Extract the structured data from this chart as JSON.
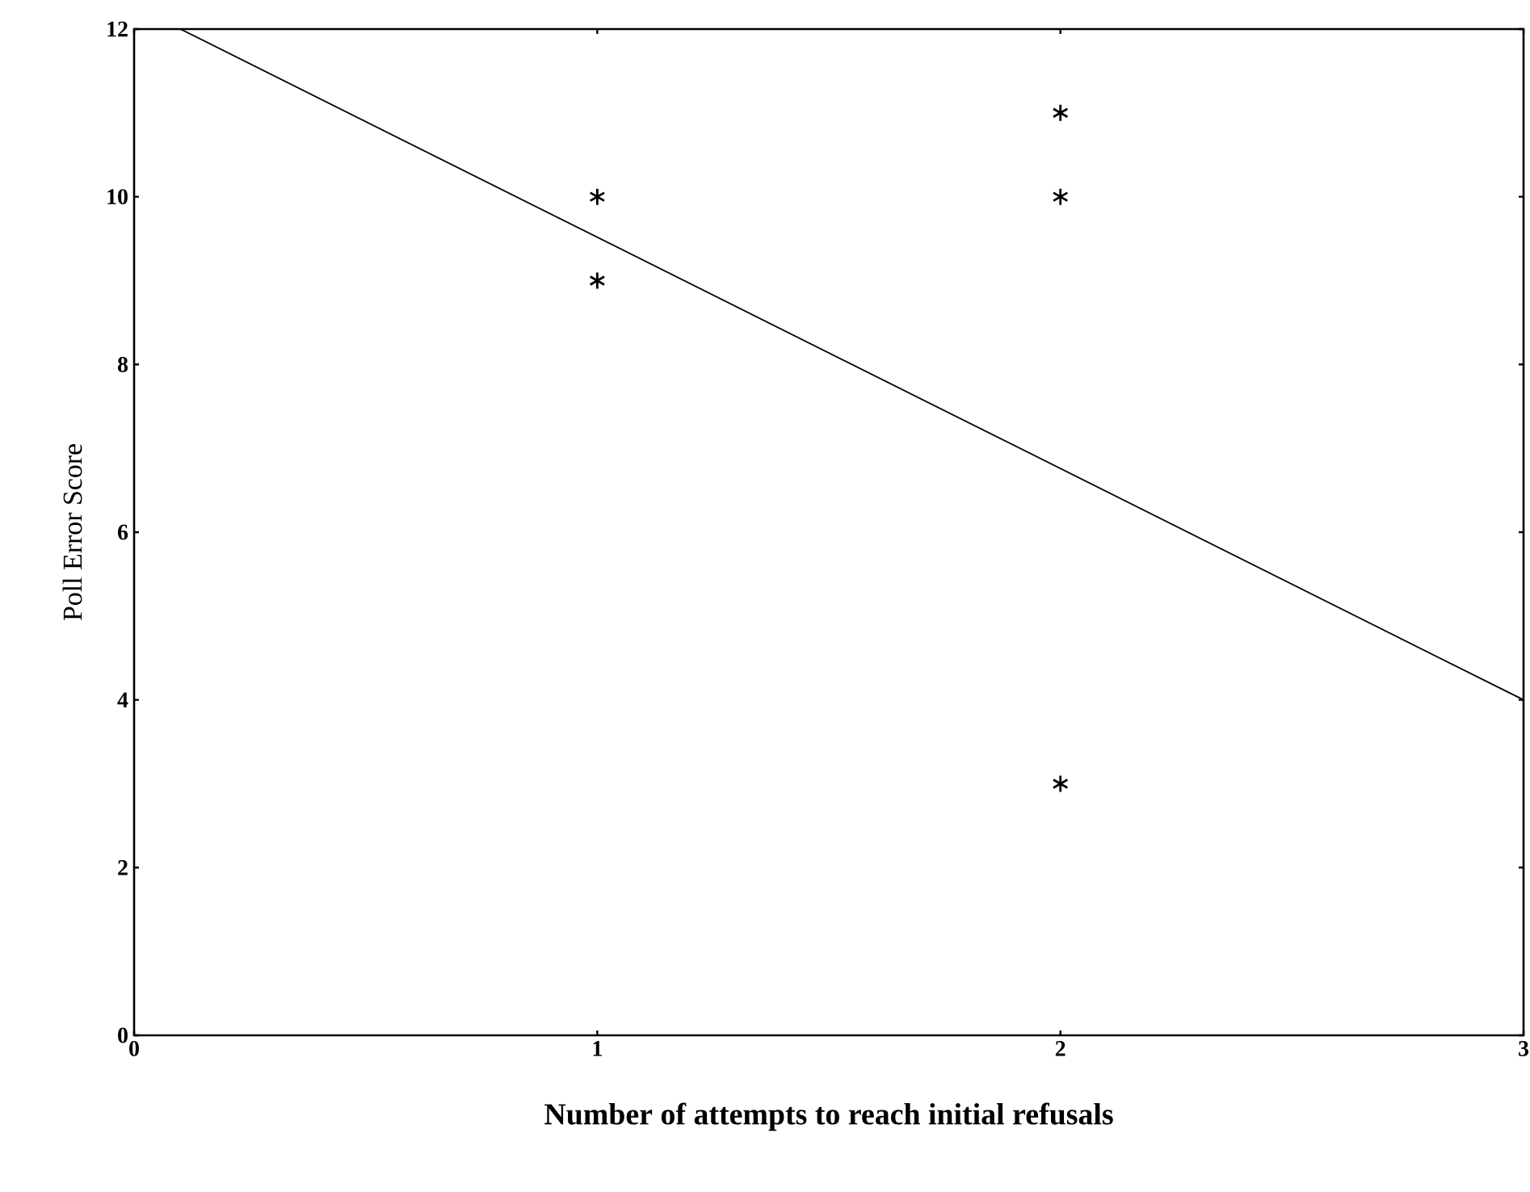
{
  "chart_data": {
    "type": "scatter",
    "xlabel": "Number of attempts to reach initial refusals",
    "ylabel": "Poll Error Score",
    "xlim": [
      0,
      3
    ],
    "ylim": [
      0,
      12
    ],
    "xticks": [
      0,
      1,
      2,
      3
    ],
    "yticks": [
      0,
      2,
      4,
      6,
      8,
      10,
      12
    ],
    "series": [
      {
        "x": [
          1,
          1,
          2,
          2,
          2
        ],
        "values": [
          10,
          9,
          11,
          10,
          3
        ],
        "color": "#000000",
        "marker": "cross"
      },
      {
        "type": "line",
        "x": [
          0.1,
          3
        ],
        "values": [
          12,
          4
        ],
        "color": "#000000",
        "marker": "none",
        "line_style": "solid"
      }
    ]
  }
}
